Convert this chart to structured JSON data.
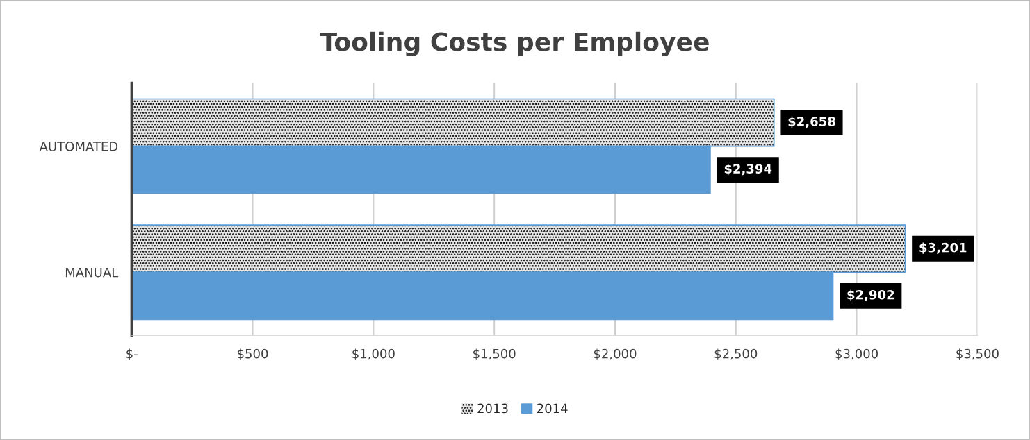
{
  "chart_data": {
    "type": "bar",
    "orientation": "horizontal",
    "title": "Tooling Costs per Employee",
    "categories": [
      "AUTOMATED",
      "MANUAL"
    ],
    "series": [
      {
        "name": "2013",
        "color": "#e6e6e6",
        "values": [
          2658,
          3201
        ],
        "value_labels": [
          "$2,658",
          "$3,201"
        ]
      },
      {
        "name": "2014",
        "color": "#5b9bd5",
        "values": [
          2394,
          2902
        ],
        "value_labels": [
          "$2,394",
          "$2,902"
        ]
      }
    ],
    "xlim": [
      0,
      3500
    ],
    "xticks": [
      {
        "value": 0,
        "label": "$-"
      },
      {
        "value": 500,
        "label": "$500"
      },
      {
        "value": 1000,
        "label": "$1,000"
      },
      {
        "value": 1500,
        "label": "$1,500"
      },
      {
        "value": 2000,
        "label": "$2,000"
      },
      {
        "value": 2500,
        "label": "$2,500"
      },
      {
        "value": 3000,
        "label": "$3,000"
      },
      {
        "value": 3500,
        "label": "$3,500"
      }
    ],
    "grid": "x",
    "legend": "bottom"
  }
}
